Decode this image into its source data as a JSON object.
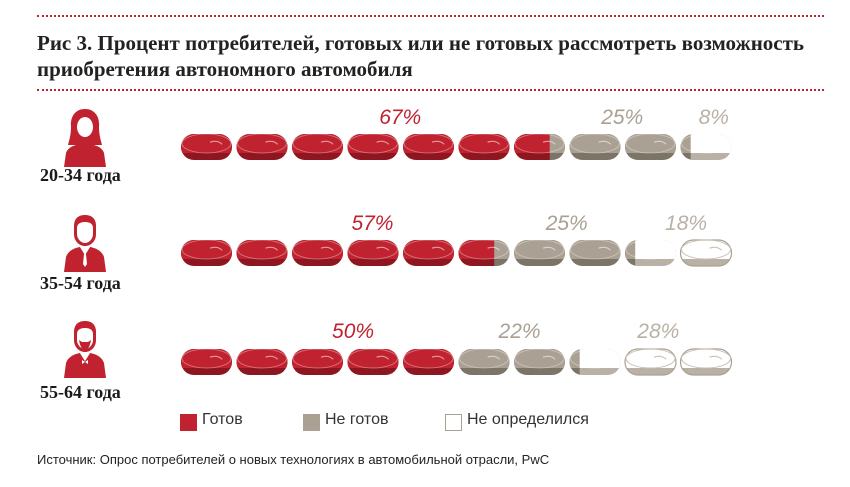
{
  "title": "Рис 3. Процент потребителей, готовых или не готовых рассмотреть возможность приобретения автономного автомобиля",
  "source": "Источник: Опрос потребителей о новых технологиях в автомобильной отрасли, PwC",
  "colors": {
    "ready": "#c0232f",
    "not_ready": "#aaa093",
    "undecided": "#ffffff",
    "accent_dots": "#c0232f"
  },
  "legend": [
    {
      "label": "Готов",
      "color": "#c0232f"
    },
    {
      "label": "Не готов",
      "color": "#aaa093"
    },
    {
      "label": "Не определился",
      "color": "#ffffff"
    }
  ],
  "chart_data": {
    "type": "bar",
    "title": "Рис 3. Процент потребителей, готовых или не готовых рассмотреть возможность приобретения автономного автомобиля",
    "stacked": true,
    "unit": "%",
    "categories": [
      "20-34 года",
      "35-54 года",
      "55-64 года"
    ],
    "series": [
      {
        "name": "Готов",
        "values": [
          67,
          57,
          50
        ],
        "labels": [
          "67%",
          "57%",
          "50%"
        ]
      },
      {
        "name": "Не готов",
        "values": [
          25,
          25,
          22
        ],
        "labels": [
          "25%",
          "25%",
          "22%"
        ]
      },
      {
        "name": "Не определился",
        "values": [
          8,
          18,
          28
        ],
        "labels": [
          "8%",
          "18%",
          "28%"
        ]
      }
    ],
    "legend_position": "bottom"
  }
}
